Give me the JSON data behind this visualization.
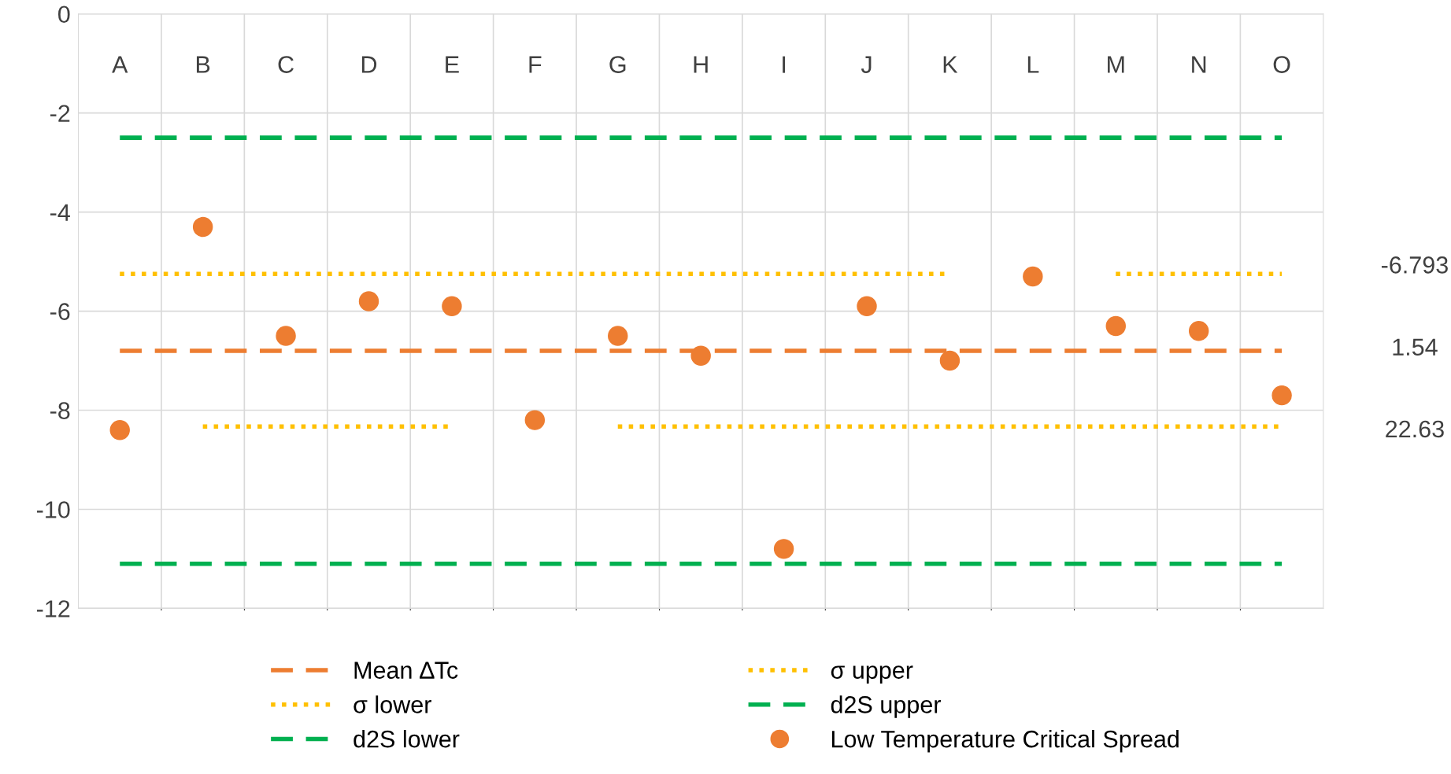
{
  "chart_data": {
    "type": "scatter",
    "categories": [
      "A",
      "B",
      "C",
      "D",
      "E",
      "F",
      "G",
      "H",
      "I",
      "J",
      "K",
      "L",
      "M",
      "N",
      "O"
    ],
    "series": [
      {
        "name": "Mean ∆Tc",
        "type": "line",
        "line_style": "dashed",
        "color": "#ed7d31",
        "values": [
          -6.8,
          -6.8,
          -6.8,
          -6.8,
          -6.8,
          -6.8,
          -6.8,
          -6.8,
          -6.8,
          -6.8,
          -6.8,
          -6.8,
          -6.8,
          -6.8,
          -6.8
        ]
      },
      {
        "name": "σ upper",
        "type": "line",
        "line_style": "dotted",
        "color": "#ffc000",
        "values": [
          -5.25,
          -5.25,
          -5.25,
          -5.25,
          -5.25,
          -5.25,
          -5.25,
          -5.25,
          -5.25,
          -5.25,
          -5.25,
          null,
          -5.25,
          -5.25,
          -5.25
        ]
      },
      {
        "name": "σ lower",
        "type": "line",
        "line_style": "dotted",
        "color": "#ffc000",
        "values": [
          null,
          -8.33,
          -8.33,
          -8.33,
          -8.33,
          null,
          -8.33,
          -8.33,
          -8.33,
          -8.33,
          -8.33,
          -8.33,
          -8.33,
          -8.33,
          -8.33
        ]
      },
      {
        "name": "d2S upper",
        "type": "line",
        "line_style": "dashed",
        "color": "#00b050",
        "values": [
          -2.5,
          -2.5,
          -2.5,
          -2.5,
          -2.5,
          -2.5,
          -2.5,
          -2.5,
          -2.5,
          -2.5,
          -2.5,
          -2.5,
          -2.5,
          -2.5,
          -2.5
        ]
      },
      {
        "name": "d2S lower",
        "type": "line",
        "line_style": "dashed",
        "color": "#00b050",
        "values": [
          -11.1,
          -11.1,
          -11.1,
          -11.1,
          -11.1,
          -11.1,
          -11.1,
          -11.1,
          -11.1,
          -11.1,
          -11.1,
          -11.1,
          -11.1,
          -11.1,
          -11.1
        ]
      },
      {
        "name": "Low Temperature Critical Spread",
        "marker": "circle",
        "color": "#ed7d31",
        "values": [
          -8.4,
          -4.3,
          -6.5,
          -5.8,
          -5.9,
          -8.2,
          -6.5,
          -6.9,
          -10.8,
          -5.9,
          -7.0,
          -5.3,
          -6.3,
          -6.4,
          -7.7
        ]
      }
    ],
    "ylim": [
      -12,
      0
    ],
    "yticks": [
      -12,
      -10,
      -8,
      -6,
      -4,
      -2,
      0
    ],
    "grid": true,
    "legend": "bottom",
    "annotations": [
      "-6.793",
      "1.54",
      "22.63"
    ]
  }
}
